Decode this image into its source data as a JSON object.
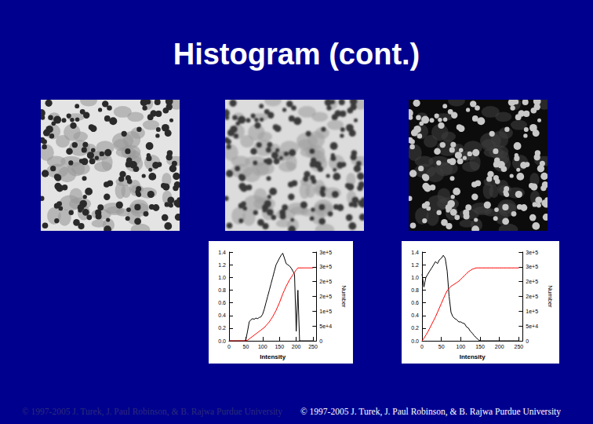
{
  "title": "Histogram (cont.)",
  "footer": [
    "© 1997-2005 J. Turek, J. Paul Robinson, & B. Rajwa Purdue University",
    "© 1997-2005 J. Turek, J. Paul Robinson, & B. Rajwa Purdue University"
  ],
  "chart_data": [
    {
      "type": "line",
      "xlabel": "Intensity",
      "y2label": "Number",
      "grid": false,
      "xlim": [
        0,
        260
      ],
      "xticks": [
        0,
        50,
        100,
        150,
        200,
        250
      ],
      "ylim": [
        0,
        1.4
      ],
      "yticks": [
        {
          "value": 0,
          "label": "0.0"
        },
        0.2,
        0.4,
        0.6,
        0.8,
        {
          "value": 1,
          "label": "1.0"
        },
        1.2,
        1.4
      ],
      "y2lim": [
        0,
        300000
      ],
      "y2ticks": [
        0,
        {
          "value": 50000,
          "label": "5e+4"
        },
        {
          "value": 100000,
          "label": "1e+5"
        },
        {
          "value": 150000,
          "label": "2e+5"
        },
        {
          "value": 200000,
          "label": "2e+5"
        },
        {
          "value": 250000,
          "label": "3e+5"
        },
        {
          "value": 300000,
          "label": "3e+5"
        }
      ],
      "x": [
        0,
        5,
        10,
        15,
        20,
        25,
        30,
        35,
        40,
        45,
        50,
        55,
        60,
        65,
        70,
        75,
        80,
        85,
        90,
        95,
        100,
        105,
        110,
        115,
        120,
        125,
        130,
        135,
        140,
        145,
        150,
        155,
        160,
        165,
        170,
        175,
        180,
        185,
        190,
        195,
        200,
        205,
        210,
        215,
        220,
        225,
        230,
        235,
        240,
        245,
        250
      ],
      "series": [
        {
          "color": "#000000",
          "axis": "y2",
          "values": [
            0,
            0,
            0,
            0,
            0,
            0,
            0,
            0,
            0,
            0,
            4000,
            32000,
            64000,
            71000,
            75000,
            73000,
            77000,
            75000,
            79000,
            81000,
            90000,
            107000,
            129000,
            150000,
            171000,
            193000,
            214000,
            236000,
            257000,
            268000,
            279000,
            289000,
            296000,
            279000,
            261000,
            257000,
            253000,
            246000,
            236000,
            225000,
            32000,
            171000,
            0,
            0,
            0,
            0,
            0,
            0,
            0,
            0,
            0
          ]
        },
        {
          "color": "#ff0000",
          "values": [
            0,
            0,
            0,
            0,
            0,
            0,
            0,
            0,
            0,
            0,
            0,
            0.01,
            0.03,
            0.05,
            0.07,
            0.09,
            0.11,
            0.13,
            0.15,
            0.17,
            0.19,
            0.21,
            0.24,
            0.27,
            0.3,
            0.34,
            0.38,
            0.43,
            0.48,
            0.54,
            0.6,
            0.67,
            0.74,
            0.8,
            0.86,
            0.91,
            0.96,
            1.0,
            1.04,
            1.08,
            1.12,
            1.15,
            1.15,
            1.15,
            1.15,
            1.15,
            1.15,
            1.15,
            1.15,
            1.15,
            1.15
          ]
        }
      ]
    },
    {
      "type": "line",
      "xlabel": "Intensity",
      "y2label": "Number",
      "grid": false,
      "xlim": [
        0,
        260
      ],
      "xticks": [
        0,
        50,
        100,
        150,
        200,
        250
      ],
      "ylim": [
        0,
        1.4
      ],
      "yticks": [
        {
          "value": 0,
          "label": "0.0"
        },
        0.2,
        0.4,
        0.6,
        0.8,
        {
          "value": 1,
          "label": "1.0"
        },
        1.2,
        1.4
      ],
      "y2lim": [
        0,
        300000
      ],
      "y2ticks": [
        0,
        {
          "value": 50000,
          "label": "5e+4"
        },
        {
          "value": 100000,
          "label": "1e+5"
        },
        {
          "value": 150000,
          "label": "2e+5"
        },
        {
          "value": 200000,
          "label": "2e+5"
        },
        {
          "value": 250000,
          "label": "3e+5"
        },
        {
          "value": 300000,
          "label": "3e+5"
        }
      ],
      "x": [
        0,
        5,
        10,
        15,
        20,
        25,
        30,
        35,
        40,
        45,
        50,
        55,
        60,
        65,
        70,
        75,
        80,
        85,
        90,
        95,
        100,
        105,
        110,
        115,
        120,
        125,
        130,
        135,
        140,
        145,
        150,
        155,
        160,
        165,
        170,
        175,
        180,
        185,
        190,
        195,
        200,
        205,
        210,
        215,
        220,
        225,
        230,
        235,
        240,
        245,
        250
      ],
      "series": [
        {
          "color": "#000000",
          "axis": "y2",
          "values": [
            225000,
            182000,
            214000,
            225000,
            236000,
            246000,
            257000,
            268000,
            261000,
            274000,
            279000,
            289000,
            279000,
            236000,
            150000,
            96000,
            81000,
            75000,
            71000,
            64000,
            64000,
            60000,
            58000,
            47000,
            43000,
            32000,
            26000,
            17000,
            11000,
            4000,
            0,
            0,
            0,
            0,
            0,
            0,
            0,
            0,
            0,
            0,
            0,
            0,
            0,
            0,
            0,
            0,
            0,
            0,
            0,
            0,
            0
          ]
        },
        {
          "color": "#ff0000",
          "values": [
            0,
            0.04,
            0.09,
            0.14,
            0.2,
            0.26,
            0.32,
            0.38,
            0.45,
            0.52,
            0.59,
            0.66,
            0.73,
            0.79,
            0.83,
            0.86,
            0.88,
            0.9,
            0.92,
            0.94,
            0.97,
            1.0,
            1.03,
            1.06,
            1.09,
            1.11,
            1.13,
            1.14,
            1.15,
            1.15,
            1.15,
            1.15,
            1.15,
            1.15,
            1.15,
            1.15,
            1.15,
            1.15,
            1.15,
            1.15,
            1.15,
            1.15,
            1.15,
            1.15,
            1.15,
            1.15,
            1.15,
            1.15,
            1.15,
            1.15,
            1.15
          ]
        }
      ]
    }
  ]
}
